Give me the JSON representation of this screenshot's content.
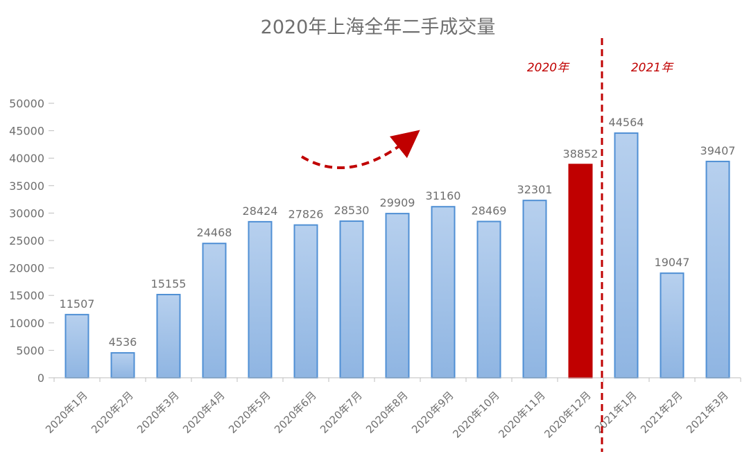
{
  "chart_data": {
    "type": "bar",
    "title": "2020年上海全年二手成交量",
    "categories": [
      "2020年1月",
      "2020年2月",
      "2020年3月",
      "2020年4月",
      "2020年5月",
      "2020年6月",
      "2020年7月",
      "2020年8月",
      "2020年9月",
      "2020年10月",
      "2020年11月",
      "2020年12月",
      "2021年1月",
      "2021年2月",
      "2021年3月"
    ],
    "values": [
      11507,
      4536,
      15155,
      24468,
      28424,
      27826,
      28530,
      29909,
      31160,
      28469,
      32301,
      38852,
      44564,
      19047,
      39407
    ],
    "ylim": [
      0,
      50000
    ],
    "yticks": [
      0,
      5000,
      10000,
      15000,
      20000,
      25000,
      30000,
      35000,
      40000,
      45000,
      50000
    ],
    "grid": false,
    "highlight_index": 11,
    "colors": {
      "bar": "#a7c5e8",
      "bar_edge": "#4f8fd4",
      "highlight": "#c00000",
      "divider": "#c00000"
    },
    "annotations": {
      "left_period": "2020年",
      "right_period": "2021年"
    }
  }
}
